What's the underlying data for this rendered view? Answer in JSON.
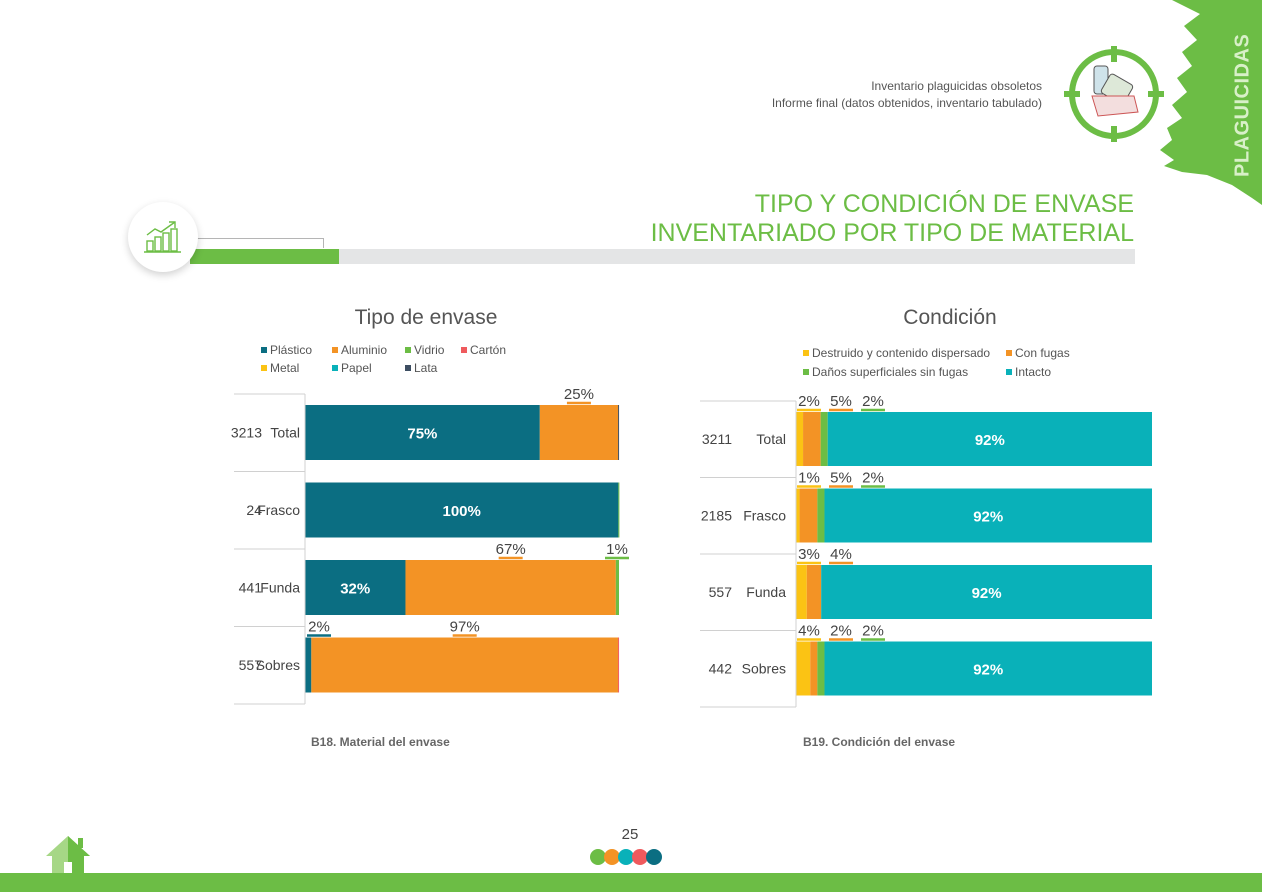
{
  "header": {
    "line1": "Inventario plaguicidas obsoletos",
    "line2": "Informe final (datos obtenidos, inventario tabulado)",
    "side_label": "PLAGUICIDAS"
  },
  "section": {
    "title_line1": "TIPO Y CONDICIÓN DE ENVASE",
    "title_line2": "INVENTARIADO POR TIPO DE MATERIAL"
  },
  "colors": {
    "brand_green": "#6cbd45",
    "plastico": "#0b6e82",
    "aluminio": "#f39325",
    "vidrio": "#6cbd45",
    "carton": "#ef5a5d",
    "metal": "#fbc314",
    "papel": "#09b1b9",
    "lata": "#3d4e62",
    "destruido": "#fbc314",
    "con_fugas": "#f39325",
    "danos": "#6cbd45",
    "intacto": "#09b1b9"
  },
  "chart_data": [
    {
      "type": "bar",
      "orientation": "horizontal",
      "stacked": "percent",
      "title": "Tipo de envase",
      "caption": "B18. Material del envase",
      "legend": [
        {
          "name": "Plástico",
          "color": "#0b6e82"
        },
        {
          "name": "Aluminio",
          "color": "#f39325"
        },
        {
          "name": "Vidrio",
          "color": "#6cbd45"
        },
        {
          "name": "Cartón",
          "color": "#ef5a5d"
        },
        {
          "name": "Metal",
          "color": "#fbc314"
        },
        {
          "name": "Papel",
          "color": "#09b1b9"
        },
        {
          "name": "Lata",
          "color": "#3d4e62"
        }
      ],
      "legend_position": "top",
      "categories": [
        {
          "count": "3213",
          "label": "Total"
        },
        {
          "count": "24",
          "label": "Frasco"
        },
        {
          "count": "441",
          "label": "Funda"
        },
        {
          "count": "557",
          "label": "Sobres"
        }
      ],
      "series": [
        {
          "name": "Plástico",
          "values": [
            75,
            100,
            32,
            2
          ],
          "labels": [
            "75%",
            "100%",
            "32%",
            "2%"
          ],
          "label_pos": [
            "in",
            "in",
            "in",
            "above"
          ]
        },
        {
          "name": "Aluminio",
          "values": [
            25,
            0,
            67,
            97
          ],
          "labels": [
            "25%",
            "",
            "67%",
            "97%"
          ],
          "label_pos": [
            "above",
            "",
            "above",
            "above"
          ]
        },
        {
          "name": "Vidrio",
          "values": [
            0,
            0.2,
            1,
            0
          ],
          "labels": [
            "",
            "",
            "1%",
            ""
          ],
          "label_pos": [
            "",
            "",
            "above-right",
            ""
          ]
        },
        {
          "name": "Cartón",
          "values": [
            0,
            0,
            0,
            0.3
          ],
          "labels": [
            "",
            "",
            "",
            ""
          ],
          "label_pos": [
            "",
            "",
            "",
            ""
          ]
        },
        {
          "name": "Metal",
          "values": [
            0,
            0,
            0,
            0
          ],
          "labels": [
            "",
            "",
            "",
            ""
          ],
          "label_pos": [
            "",
            "",
            "",
            ""
          ]
        },
        {
          "name": "Papel",
          "values": [
            0,
            0,
            0,
            0
          ],
          "labels": [
            "",
            "",
            "",
            ""
          ],
          "label_pos": [
            "",
            "",
            "",
            ""
          ]
        },
        {
          "name": "Lata",
          "values": [
            0.3,
            0,
            0,
            0
          ],
          "labels": [
            "",
            "",
            "",
            ""
          ],
          "label_pos": [
            "",
            "",
            "",
            ""
          ]
        }
      ],
      "xlim": [
        0,
        100
      ],
      "grid": false
    },
    {
      "type": "bar",
      "orientation": "horizontal",
      "stacked": "percent",
      "title": "Condición",
      "caption": "B19. Condición del envase",
      "legend": [
        {
          "name": "Destruido y contenido dispersado",
          "color": "#fbc314"
        },
        {
          "name": "Con fugas",
          "color": "#f39325"
        },
        {
          "name": "Daños superficiales sin fugas",
          "color": "#6cbd45"
        },
        {
          "name": "Intacto",
          "color": "#09b1b9"
        }
      ],
      "legend_position": "top",
      "categories": [
        {
          "count": "3211",
          "label": "Total"
        },
        {
          "count": "2185",
          "label": "Frasco"
        },
        {
          "count": "557",
          "label": "Funda"
        },
        {
          "count": "442",
          "label": "Sobres"
        }
      ],
      "series": [
        {
          "name": "Destruido y contenido dispersado",
          "values": [
            2,
            1,
            3,
            4
          ],
          "labels": [
            "2%",
            "1%",
            "3%",
            "4%"
          ],
          "label_pos": [
            "above",
            "above",
            "above",
            "above"
          ]
        },
        {
          "name": "Con fugas",
          "values": [
            5,
            5,
            4,
            2
          ],
          "labels": [
            "5%",
            "5%",
            "4%",
            "2%"
          ],
          "label_pos": [
            "above",
            "above",
            "above",
            "above"
          ]
        },
        {
          "name": "Daños superficiales sin fugas",
          "values": [
            2,
            2,
            0,
            2
          ],
          "labels": [
            "2%",
            "2%",
            "",
            "2%"
          ],
          "label_pos": [
            "above",
            "above",
            "",
            "above"
          ]
        },
        {
          "name": "Intacto",
          "values": [
            92,
            92,
            92,
            92
          ],
          "labels": [
            "92%",
            "92%",
            "92%",
            "92%"
          ],
          "label_pos": [
            "in",
            "in",
            "in",
            "in"
          ]
        }
      ],
      "xlim": [
        0,
        100
      ],
      "grid": false
    }
  ],
  "footer": {
    "page_number": "25",
    "dot_colors": [
      "#6cbd45",
      "#f39325",
      "#09b1b9",
      "#ef5a5d",
      "#0b6e82"
    ]
  }
}
